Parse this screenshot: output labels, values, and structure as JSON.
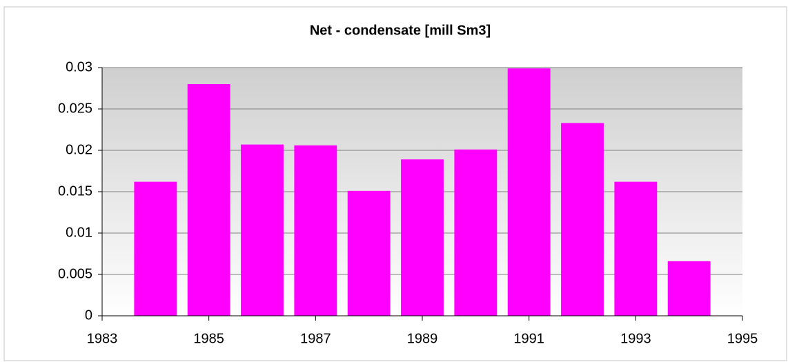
{
  "chart_data": {
    "type": "bar",
    "title": "Net - condensate [mill Sm3]",
    "x": [
      1984,
      1985,
      1986,
      1987,
      1988,
      1989,
      1990,
      1991,
      1992,
      1993,
      1994
    ],
    "values": [
      0.0162,
      0.028,
      0.0207,
      0.0206,
      0.0151,
      0.0189,
      0.0201,
      0.0299,
      0.0233,
      0.0162,
      0.0066
    ],
    "color": "#ff00ff",
    "xlim": [
      1983,
      1995
    ],
    "xticks": [
      1983,
      1985,
      1987,
      1989,
      1991,
      1993,
      1995
    ],
    "ylim": [
      0,
      0.03
    ],
    "yticks": [
      0,
      0.005,
      0.01,
      0.015,
      0.02,
      0.025,
      0.03
    ],
    "grid": true
  }
}
